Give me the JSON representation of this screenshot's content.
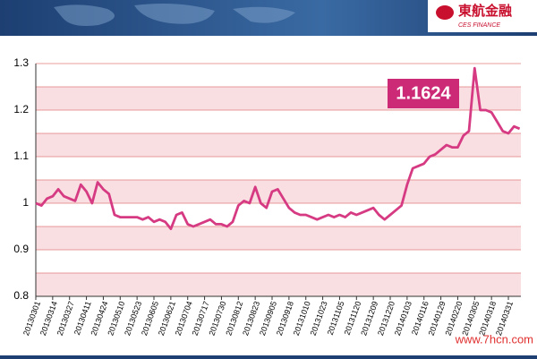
{
  "header": {
    "brand": "東航金融",
    "brand_en": "CES FINANCE"
  },
  "chart_data": {
    "type": "line",
    "annotation": "1.1624",
    "watermark": "www.7hcn.com",
    "categories": [
      "20130301",
      null,
      null,
      "20130314",
      null,
      null,
      "20130327",
      null,
      null,
      "20130411",
      null,
      null,
      "20130424",
      null,
      null,
      "20130510",
      null,
      null,
      "20130523",
      null,
      null,
      "20130605",
      null,
      null,
      "20130621",
      null,
      null,
      "20130704",
      null,
      null,
      "20130717",
      null,
      null,
      "20130730",
      null,
      null,
      "20130812",
      null,
      null,
      "20130823",
      null,
      null,
      "20130905",
      null,
      null,
      "20130918",
      null,
      null,
      "20131010",
      null,
      null,
      "20131023",
      null,
      null,
      "20131105",
      null,
      null,
      "20131120",
      null,
      null,
      "20131209",
      null,
      null,
      "20131220",
      null,
      null,
      "20140103",
      null,
      null,
      "20140116",
      null,
      null,
      "20140129",
      null,
      null,
      "20140220",
      null,
      null,
      "20140305",
      null,
      null,
      "20140318",
      null,
      null,
      "20140331",
      null,
      null
    ],
    "values": [
      1.0,
      0.995,
      1.01,
      1.015,
      1.03,
      1.015,
      1.01,
      1.005,
      1.04,
      1.025,
      1.0,
      1.045,
      1.03,
      1.02,
      0.975,
      0.97,
      0.97,
      0.97,
      0.97,
      0.965,
      0.97,
      0.96,
      0.965,
      0.96,
      0.945,
      0.975,
      0.98,
      0.955,
      0.95,
      0.955,
      0.96,
      0.965,
      0.955,
      0.955,
      0.95,
      0.96,
      0.995,
      1.005,
      1.0,
      1.035,
      1.0,
      0.99,
      1.025,
      1.03,
      1.01,
      0.99,
      0.98,
      0.975,
      0.975,
      0.97,
      0.965,
      0.97,
      0.975,
      0.97,
      0.975,
      0.97,
      0.98,
      0.975,
      0.98,
      0.985,
      0.99,
      0.975,
      0.965,
      0.975,
      0.985,
      0.995,
      1.04,
      1.075,
      1.08,
      1.085,
      1.1,
      1.105,
      1.115,
      1.125,
      1.12,
      1.12,
      1.145,
      1.155,
      1.29,
      1.2,
      1.2,
      1.195,
      1.175,
      1.155,
      1.15,
      1.165,
      1.16
    ],
    "color": "#d63a82",
    "ylim": [
      0.8,
      1.3
    ],
    "yticks": [
      0.8,
      0.9,
      1,
      1.1,
      1.2,
      1.3
    ],
    "grid": true
  }
}
